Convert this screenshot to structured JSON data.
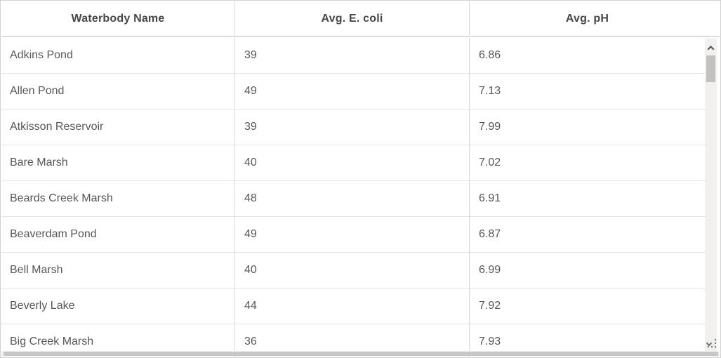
{
  "table": {
    "columns": [
      {
        "label": "Waterbody Name"
      },
      {
        "label": "Avg. E. coli"
      },
      {
        "label": "Avg. pH"
      }
    ],
    "rows": [
      {
        "name": "Adkins Pond",
        "ecoli": "39",
        "ph": "6.86"
      },
      {
        "name": "Allen Pond",
        "ecoli": "49",
        "ph": "7.13"
      },
      {
        "name": "Atkisson Reservoir",
        "ecoli": "39",
        "ph": "7.99"
      },
      {
        "name": "Bare Marsh",
        "ecoli": "40",
        "ph": "7.02"
      },
      {
        "name": "Beards Creek Marsh",
        "ecoli": "48",
        "ph": "6.91"
      },
      {
        "name": "Beaverdam Pond",
        "ecoli": "49",
        "ph": "6.87"
      },
      {
        "name": "Bell Marsh",
        "ecoli": "40",
        "ph": "6.99"
      },
      {
        "name": "Beverly Lake",
        "ecoli": "44",
        "ph": "7.92"
      },
      {
        "name": "Big Creek Marsh",
        "ecoli": "36",
        "ph": "7.93"
      }
    ]
  },
  "scrollbar": {
    "up_icon": "chevron-up-icon",
    "down_icon": "chevron-down-icon",
    "grip_icon": "resize-grip-icon"
  },
  "colors": {
    "header_text": "#45474c",
    "body_text": "#55575c",
    "column_border": "#d9d9d9",
    "row_border": "#e3e3e3",
    "outer_border": "#d2d2d2",
    "scroll_track": "#f1f0ef",
    "scroll_thumb": "#c2c1c0"
  }
}
